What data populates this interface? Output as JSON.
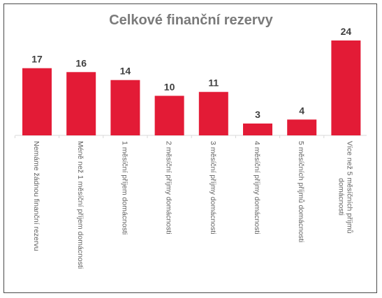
{
  "chart_data": {
    "type": "bar",
    "title": "Celkové finanční rezervy",
    "xlabel": "",
    "ylabel": "",
    "categories": [
      [
        "Nemáme žádnou finanční rezervu"
      ],
      [
        "Méně než 1 měsíční příjem domácnosti"
      ],
      [
        "1 měsíční příjem domácnosti"
      ],
      [
        "2 měsíční příjmy domácnosti"
      ],
      [
        "3 měsíční příjmy domácnosti"
      ],
      [
        "4 měsíční příjmy domácnosti"
      ],
      [
        "5 měsíčních příjmů domácnosti"
      ],
      [
        "Více než 5 měsíčních příjmů",
        "domácnosti"
      ]
    ],
    "values": [
      17,
      16,
      14,
      10,
      11,
      3,
      4,
      24
    ],
    "ylim": [
      0,
      24
    ],
    "bar_color": "#e31b36",
    "grid": false,
    "legend": "none"
  }
}
